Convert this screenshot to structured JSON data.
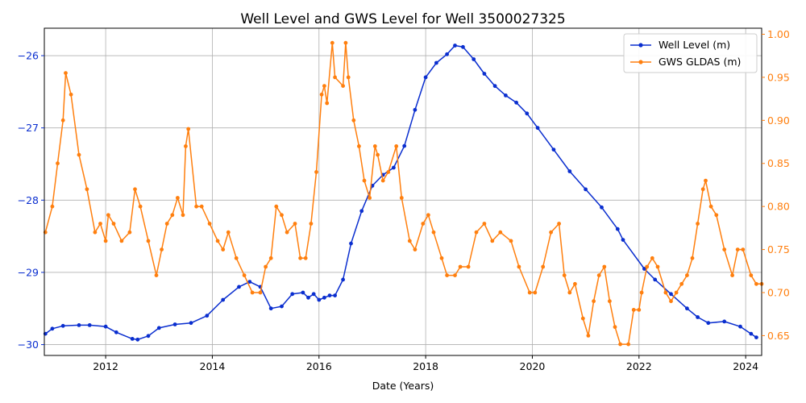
{
  "chart_data": {
    "type": "line",
    "title": "Well Level and GWS Level for Well 3500027325",
    "xlabel": "Date (Years)",
    "ylabel_left": "",
    "ylabel_right": "",
    "x_range": [
      2010.85,
      2024.3
    ],
    "y_left_range": [
      -30.15,
      -25.62
    ],
    "y_right_range": [
      0.627,
      1.007
    ],
    "x_ticks": [
      2012,
      2014,
      2016,
      2018,
      2020,
      2022,
      2024
    ],
    "x_tick_labels": [
      "2012",
      "2014",
      "2016",
      "2018",
      "2020",
      "2022",
      "2024"
    ],
    "y_left_ticks": [
      -30,
      -29,
      -28,
      -27,
      -26
    ],
    "y_left_tick_labels": [
      "−30",
      "−29",
      "−28",
      "−27",
      "−26"
    ],
    "y_right_ticks": [
      0.65,
      0.7,
      0.75,
      0.8,
      0.85,
      0.9,
      0.95,
      1.0
    ],
    "y_right_tick_labels": [
      "0.65",
      "0.70",
      "0.75",
      "0.80",
      "0.85",
      "0.90",
      "0.95",
      "1.00"
    ],
    "grid": true,
    "legend_position": "top-right",
    "colors": {
      "well": "#0a2ecf",
      "gws": "#ff7f0e",
      "left_axis": "#0a2ecf",
      "right_axis": "#ff7f0e"
    },
    "series": [
      {
        "name": "Well Level (m)",
        "axis": "left",
        "color": "#0a2ecf",
        "marker": "circle",
        "x": [
          2010.87,
          2011.0,
          2011.2,
          2011.5,
          2011.7,
          2012.0,
          2012.2,
          2012.5,
          2012.6,
          2012.8,
          2013.0,
          2013.3,
          2013.6,
          2013.9,
          2014.2,
          2014.5,
          2014.7,
          2014.9,
          2015.1,
          2015.3,
          2015.5,
          2015.7,
          2015.8,
          2015.9,
          2016.0,
          2016.1,
          2016.2,
          2016.3,
          2016.45,
          2016.6,
          2016.8,
          2017.0,
          2017.2,
          2017.4,
          2017.6,
          2017.8,
          2018.0,
          2018.2,
          2018.4,
          2018.55,
          2018.7,
          2018.9,
          2019.1,
          2019.3,
          2019.5,
          2019.7,
          2019.9,
          2020.1,
          2020.4,
          2020.7,
          2021.0,
          2021.3,
          2021.6,
          2021.7,
          2022.1,
          2022.3,
          2022.6,
          2022.9,
          2023.1,
          2023.3,
          2023.6,
          2023.9,
          2024.1,
          2024.2
        ],
        "y": [
          -29.85,
          -29.78,
          -29.74,
          -29.73,
          -29.73,
          -29.75,
          -29.83,
          -29.92,
          -29.93,
          -29.88,
          -29.77,
          -29.72,
          -29.7,
          -29.6,
          -29.38,
          -29.2,
          -29.13,
          -29.2,
          -29.5,
          -29.47,
          -29.3,
          -29.28,
          -29.35,
          -29.3,
          -29.38,
          -29.35,
          -29.32,
          -29.32,
          -29.1,
          -28.6,
          -28.15,
          -27.8,
          -27.65,
          -27.55,
          -27.25,
          -26.75,
          -26.3,
          -26.1,
          -25.98,
          -25.86,
          -25.88,
          -26.05,
          -26.25,
          -26.42,
          -26.55,
          -26.65,
          -26.8,
          -27.0,
          -27.3,
          -27.6,
          -27.85,
          -28.1,
          -28.4,
          -28.55,
          -28.95,
          -29.1,
          -29.3,
          -29.5,
          -29.62,
          -29.7,
          -29.68,
          -29.75,
          -29.85,
          -29.9
        ]
      },
      {
        "name": "GWS GLDAS (m)",
        "axis": "right",
        "color": "#ff7f0e",
        "marker": "circle",
        "x": [
          2010.87,
          2011.0,
          2011.1,
          2011.2,
          2011.25,
          2011.35,
          2011.5,
          2011.65,
          2011.8,
          2011.9,
          2012.0,
          2012.05,
          2012.15,
          2012.3,
          2012.45,
          2012.55,
          2012.65,
          2012.8,
          2012.95,
          2013.05,
          2013.15,
          2013.25,
          2013.35,
          2013.45,
          2013.5,
          2013.55,
          2013.7,
          2013.8,
          2013.95,
          2014.1,
          2014.2,
          2014.3,
          2014.45,
          2014.6,
          2014.75,
          2014.9,
          2015.0,
          2015.1,
          2015.2,
          2015.3,
          2015.4,
          2015.55,
          2015.65,
          2015.75,
          2015.85,
          2015.95,
          2016.05,
          2016.1,
          2016.15,
          2016.25,
          2016.3,
          2016.45,
          2016.5,
          2016.55,
          2016.65,
          2016.75,
          2016.85,
          2016.95,
          2017.05,
          2017.1,
          2017.2,
          2017.3,
          2017.45,
          2017.55,
          2017.7,
          2017.8,
          2017.95,
          2018.05,
          2018.15,
          2018.3,
          2018.4,
          2018.55,
          2018.65,
          2018.8,
          2018.95,
          2019.1,
          2019.25,
          2019.4,
          2019.6,
          2019.75,
          2019.95,
          2020.05,
          2020.2,
          2020.35,
          2020.5,
          2020.6,
          2020.7,
          2020.8,
          2020.95,
          2021.05,
          2021.15,
          2021.25,
          2021.35,
          2021.45,
          2021.55,
          2021.65,
          2021.8,
          2021.9,
          2022.0,
          2022.05,
          2022.15,
          2022.25,
          2022.35,
          2022.5,
          2022.6,
          2022.7,
          2022.8,
          2022.9,
          2023.0,
          2023.1,
          2023.2,
          2023.25,
          2023.35,
          2023.45,
          2023.6,
          2023.75,
          2023.85,
          2023.95,
          2024.1,
          2024.2,
          2024.3
        ],
        "y": [
          0.77,
          0.8,
          0.85,
          0.9,
          0.955,
          0.93,
          0.86,
          0.82,
          0.77,
          0.78,
          0.76,
          0.79,
          0.78,
          0.76,
          0.77,
          0.82,
          0.8,
          0.76,
          0.72,
          0.75,
          0.78,
          0.79,
          0.81,
          0.79,
          0.87,
          0.89,
          0.8,
          0.8,
          0.78,
          0.76,
          0.75,
          0.77,
          0.74,
          0.72,
          0.7,
          0.7,
          0.73,
          0.74,
          0.8,
          0.79,
          0.77,
          0.78,
          0.74,
          0.74,
          0.78,
          0.84,
          0.93,
          0.94,
          0.92,
          0.99,
          0.95,
          0.94,
          0.99,
          0.95,
          0.9,
          0.87,
          0.83,
          0.81,
          0.87,
          0.86,
          0.83,
          0.84,
          0.87,
          0.81,
          0.76,
          0.75,
          0.78,
          0.79,
          0.77,
          0.74,
          0.72,
          0.72,
          0.73,
          0.73,
          0.77,
          0.78,
          0.76,
          0.77,
          0.76,
          0.73,
          0.7,
          0.7,
          0.73,
          0.77,
          0.78,
          0.72,
          0.7,
          0.71,
          0.67,
          0.65,
          0.69,
          0.72,
          0.73,
          0.69,
          0.66,
          0.64,
          0.64,
          0.68,
          0.68,
          0.7,
          0.73,
          0.74,
          0.73,
          0.7,
          0.69,
          0.7,
          0.71,
          0.72,
          0.74,
          0.78,
          0.82,
          0.83,
          0.8,
          0.79,
          0.75,
          0.72,
          0.75,
          0.75,
          0.72,
          0.71,
          0.71
        ]
      }
    ]
  }
}
